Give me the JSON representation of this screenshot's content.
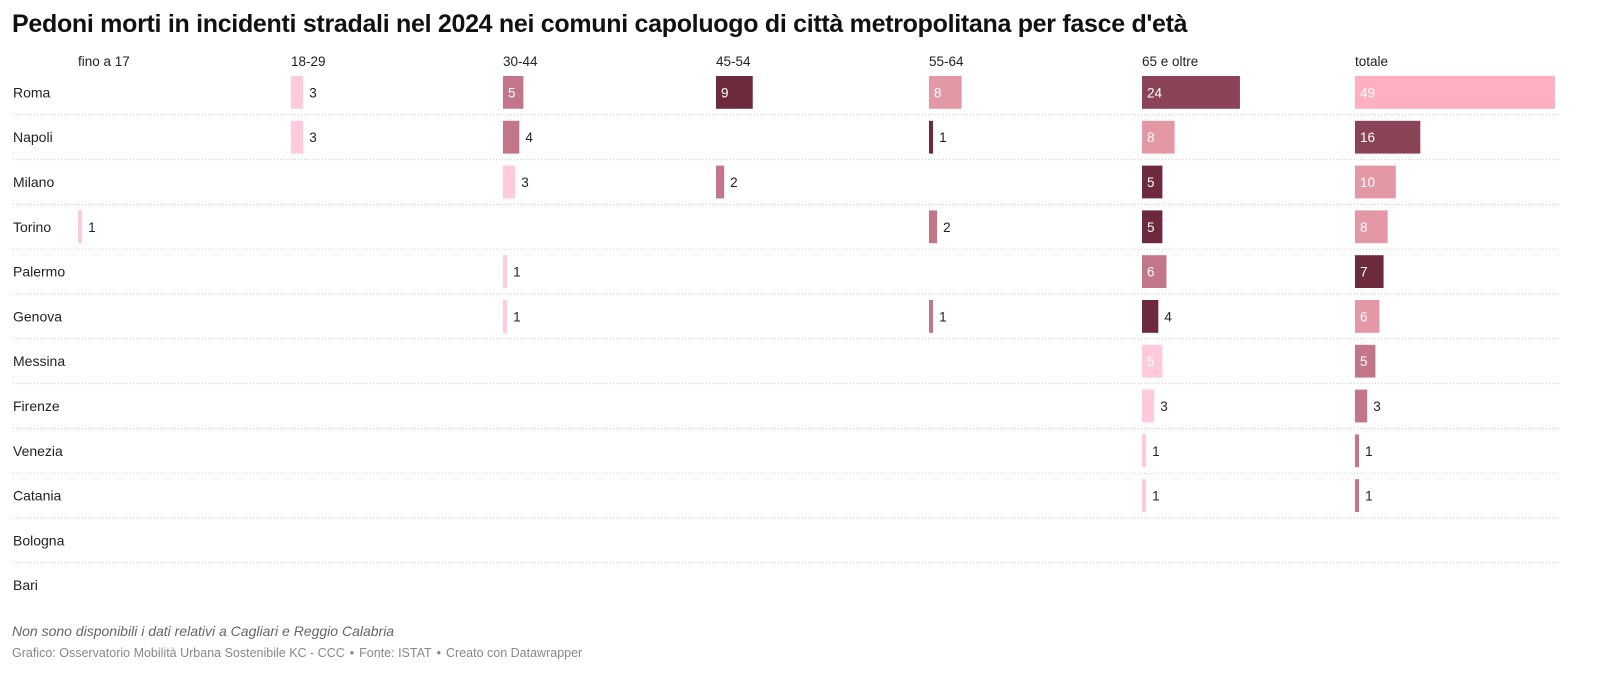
{
  "title": "Pedoni morti in incidenti stradali nel 2024 nei comuni capoluogo di città metropolitana per fasce d'età",
  "note": "Non sono disponibili i dati relativi a Cagliari e Reggio Calabria",
  "credit": {
    "part1": "Grafico: Osservatorio Mobilità Urbana Sostenibile KC - CCC",
    "separator": "•",
    "part2": "Fonte: ISTAT",
    "part3": "Creato con Datawrapper"
  },
  "colors": {
    "pale_pink": "#ffcbdb",
    "light_pink": "#ffafbf",
    "rose": "#e498a6",
    "mauve": "#c3768a",
    "plum": "#8b4457",
    "burgundy": "#6e2a3d",
    "row_divider": "#cccccc"
  },
  "chart_data": {
    "type": "bar",
    "layout": "small-multiples",
    "columns": [
      "fino a 17",
      "18-29",
      "30-44",
      "45-54",
      "55-64",
      "65 e oltre",
      "totale"
    ],
    "categories": [
      "Roma",
      "Napoli",
      "Milano",
      "Torino",
      "Palermo",
      "Genova",
      "Messina",
      "Firenze",
      "Venezia",
      "Catania",
      "Bologna",
      "Bari"
    ],
    "xlim": [
      0,
      49
    ],
    "series": [
      {
        "name": "fino a 17",
        "values": [
          null,
          null,
          null,
          1,
          null,
          null,
          null,
          null,
          null,
          null,
          null,
          null
        ]
      },
      {
        "name": "18-29",
        "values": [
          3,
          3,
          null,
          null,
          null,
          null,
          null,
          null,
          null,
          null,
          null,
          null
        ]
      },
      {
        "name": "30-44",
        "values": [
          5,
          4,
          3,
          null,
          1,
          1,
          null,
          null,
          null,
          null,
          null,
          null
        ]
      },
      {
        "name": "45-54",
        "values": [
          9,
          null,
          2,
          null,
          null,
          null,
          null,
          null,
          null,
          null,
          null,
          null
        ]
      },
      {
        "name": "55-64",
        "values": [
          8,
          1,
          null,
          2,
          null,
          1,
          null,
          null,
          null,
          null,
          null,
          null
        ]
      },
      {
        "name": "65 e oltre",
        "values": [
          24,
          8,
          5,
          5,
          6,
          4,
          5,
          3,
          1,
          1,
          null,
          null
        ]
      },
      {
        "name": "totale",
        "values": [
          49,
          16,
          10,
          8,
          7,
          6,
          5,
          3,
          1,
          1,
          null,
          null
        ]
      }
    ],
    "bar_colors": [
      [
        null,
        null,
        null,
        "pale_pink",
        null,
        null,
        null,
        null,
        null,
        null,
        null,
        null
      ],
      [
        "pale_pink",
        "pale_pink",
        null,
        null,
        null,
        null,
        null,
        null,
        null,
        null,
        null,
        null
      ],
      [
        "mauve",
        "mauve",
        "pale_pink",
        null,
        "pale_pink",
        "pale_pink",
        null,
        null,
        null,
        null,
        null,
        null
      ],
      [
        "burgundy",
        null,
        "mauve",
        null,
        null,
        null,
        null,
        null,
        null,
        null,
        null,
        null
      ],
      [
        "rose",
        "burgundy",
        null,
        "mauve",
        null,
        "mauve",
        null,
        null,
        null,
        null,
        null,
        null
      ],
      [
        "plum",
        "rose",
        "burgundy",
        "burgundy",
        "mauve",
        "burgundy",
        "pale_pink",
        "pale_pink",
        "pale_pink",
        "pale_pink",
        null,
        null
      ],
      [
        "light_pink",
        "plum",
        "rose",
        "rose",
        "burgundy",
        "rose",
        "mauve",
        "mauve",
        "mauve",
        "mauve",
        null,
        null
      ]
    ]
  }
}
